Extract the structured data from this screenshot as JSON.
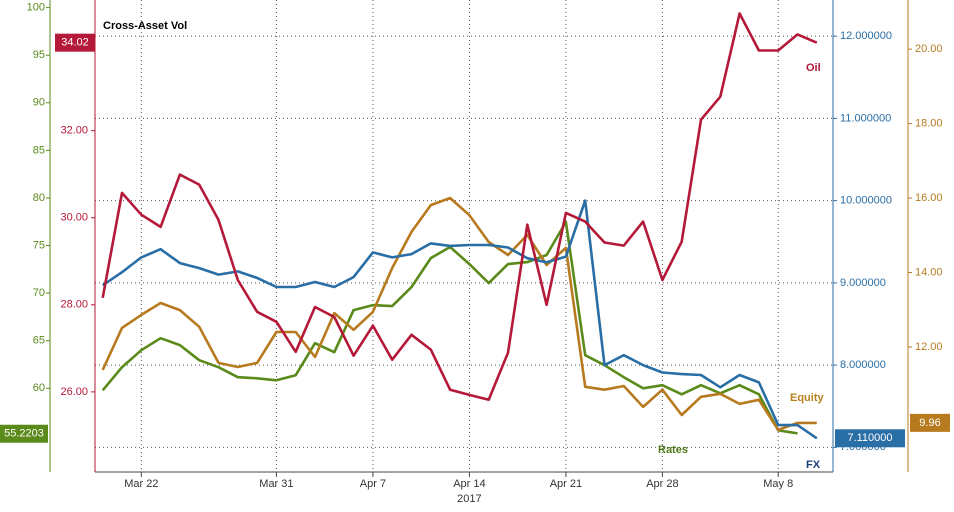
{
  "chart_data": {
    "type": "multi_axis_line",
    "title": "Cross-Asset Vol",
    "xlabel": "2017",
    "categories": [
      null,
      null,
      "Mar 22",
      null,
      null,
      null,
      null,
      null,
      null,
      "Mar 31",
      null,
      null,
      null,
      null,
      "Apr 7",
      null,
      null,
      null,
      null,
      "Apr 14",
      null,
      null,
      null,
      null,
      "Apr 21",
      null,
      null,
      null,
      null,
      "Apr 28",
      null,
      null,
      null,
      null,
      null,
      "May 8",
      null,
      null
    ],
    "grid": true,
    "ylim": [
      51.2,
      100.8
    ],
    "yticks": [
      60,
      65,
      70,
      75,
      80,
      85,
      90,
      95,
      100
    ],
    "y2lim": [
      24.16,
      35.0
    ],
    "y2ticks": [
      {
        "value": 26,
        "label": "26.00"
      },
      {
        "value": 28,
        "label": "28.00"
      },
      {
        "value": 30,
        "label": "30.00"
      },
      {
        "value": 32,
        "label": "32.00"
      }
    ],
    "y3lim": [
      6.7,
      12.44
    ],
    "y3ticks": [
      {
        "value": 7,
        "label": "7.000000"
      },
      {
        "value": 8,
        "label": "8.000000"
      },
      {
        "value": 9,
        "label": "9.000000"
      },
      {
        "value": 10,
        "label": "10.000000"
      },
      {
        "value": 11,
        "label": "11.000000"
      },
      {
        "value": 12,
        "label": "12.000000"
      }
    ],
    "y4lim": [
      8.64,
      21.32
    ],
    "y4ticks": [
      {
        "value": 12,
        "label": "12.00"
      },
      {
        "value": 14,
        "label": "14.00"
      },
      {
        "value": 16,
        "label": "16.00"
      },
      {
        "value": 18,
        "label": "18.00"
      },
      {
        "value": 20,
        "label": "20.00"
      }
    ],
    "series": [
      {
        "name": "Rates",
        "color": "#5a8a1a",
        "axis": "y",
        "last": {
          "value": 55.2203,
          "label": "55.2203"
        },
        "values": [
          59.79,
          62.21,
          64.0,
          65.26,
          64.53,
          62.95,
          62.21,
          61.16,
          61.05,
          60.84,
          61.37,
          64.74,
          63.79,
          68.21,
          68.74,
          68.63,
          70.63,
          73.68,
          74.84,
          73.05,
          71.05,
          73.05,
          73.26,
          74.0,
          77.47,
          63.47,
          62.42,
          61.16,
          60.0,
          60.32,
          59.37,
          60.32,
          59.47,
          60.32,
          59.37,
          55.58,
          55.26,
          null
        ]
      },
      {
        "name": "Equity",
        "color": "#b87a1e",
        "axis": "y4",
        "last": {
          "value": 9.96,
          "label": "9.96"
        },
        "values": [
          11.38,
          12.51,
          12.86,
          13.18,
          12.99,
          12.54,
          11.57,
          11.46,
          11.57,
          12.4,
          12.4,
          11.73,
          12.91,
          12.46,
          12.94,
          14.12,
          15.09,
          15.81,
          16.0,
          15.54,
          14.82,
          14.47,
          15.01,
          14.2,
          14.66,
          10.93,
          10.85,
          10.95,
          10.39,
          10.85,
          10.17,
          10.66,
          10.74,
          10.47,
          10.58,
          9.77,
          9.96,
          9.96
        ]
      },
      {
        "name": "FX",
        "color": "#2a6ea6",
        "axis": "y3",
        "last": {
          "value": 7.11,
          "label": "7.110000"
        },
        "values": [
          8.97,
          9.13,
          9.31,
          9.41,
          9.24,
          9.18,
          9.1,
          9.14,
          9.06,
          8.95,
          8.95,
          9.01,
          8.95,
          9.07,
          9.37,
          9.31,
          9.35,
          9.48,
          9.45,
          9.46,
          9.46,
          9.43,
          9.3,
          9.25,
          9.32,
          10.0,
          8.0,
          8.12,
          8.0,
          7.91,
          7.89,
          7.88,
          7.73,
          7.88,
          7.79,
          7.27,
          7.27,
          7.11
        ]
      },
      {
        "name": "Oil",
        "color": "#b5193a",
        "axis": "y2",
        "last": {
          "value": 34.02,
          "label": "34.02"
        },
        "values": [
          28.16,
          30.57,
          30.07,
          29.79,
          30.99,
          30.76,
          29.95,
          28.57,
          27.84,
          27.61,
          26.92,
          27.95,
          27.72,
          26.83,
          27.52,
          26.74,
          27.31,
          26.97,
          26.05,
          25.93,
          25.82,
          26.9,
          29.84,
          28.0,
          30.11,
          29.91,
          29.43,
          29.36,
          29.91,
          28.57,
          29.45,
          32.25,
          32.78,
          34.69,
          33.84,
          33.84,
          34.21,
          34.02
        ]
      }
    ]
  }
}
